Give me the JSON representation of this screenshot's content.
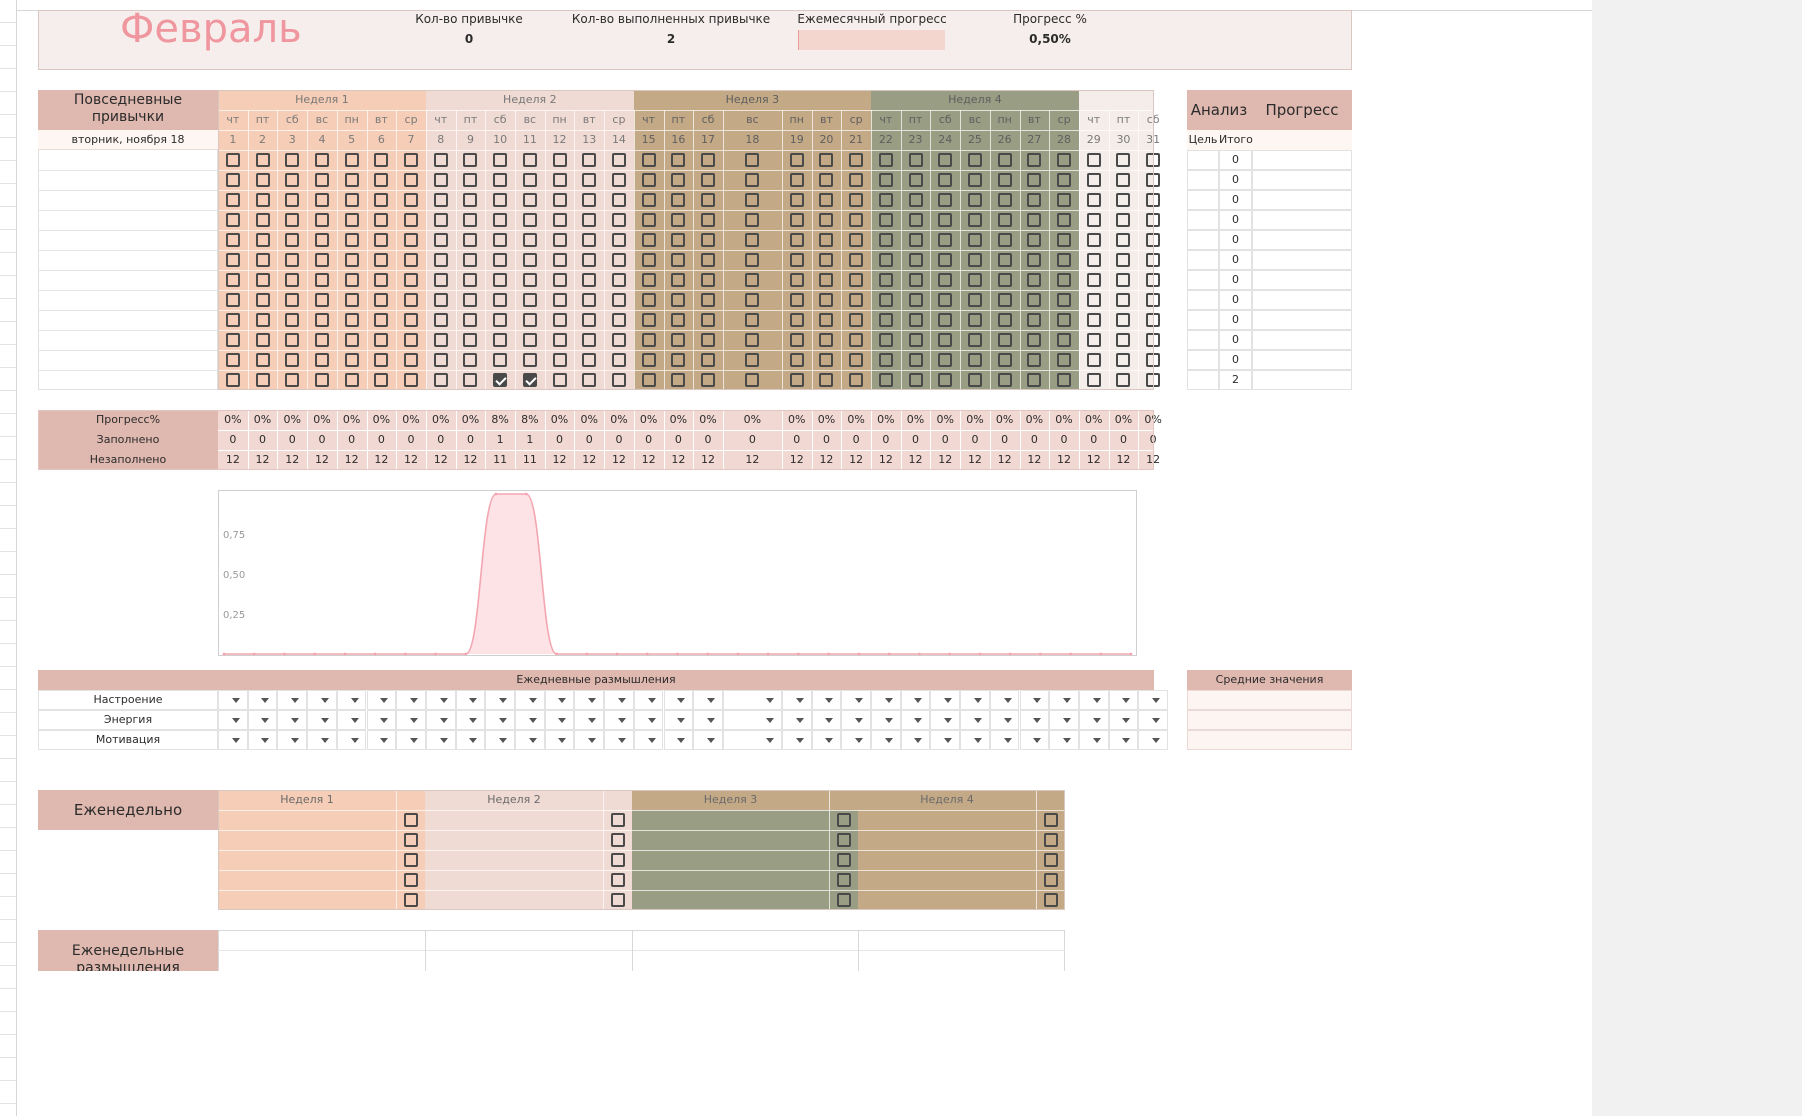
{
  "header": {
    "month": "Февраль",
    "stats": [
      {
        "label": "Кол-во привычке",
        "value": "0"
      },
      {
        "label": "Кол-во выполненных привычке",
        "value": "2"
      },
      {
        "label": "Ежемесячный прогресс",
        "value": ""
      },
      {
        "label": "Прогресс %",
        "value": "0,50%"
      }
    ],
    "monthly_progress_fraction": 0.005
  },
  "habits": {
    "title_line1": "Повседневные",
    "title_line2": "привычки",
    "date": "вторник, ноября 18",
    "weeks": [
      "Неделя 1",
      "Неделя 2",
      "Неделя 3",
      "Неделя 4",
      ""
    ],
    "days": [
      "чт",
      "пт",
      "сб",
      "вс",
      "пн",
      "вт",
      "ср",
      "чт",
      "пт",
      "сб",
      "вс",
      "пн",
      "вт",
      "ср",
      "чт",
      "пт",
      "сб",
      "вс",
      "пн",
      "вт",
      "ср",
      "чт",
      "пт",
      "сб",
      "вс",
      "пн",
      "вт",
      "ср",
      "чт",
      "пт",
      "сб"
    ],
    "dates": [
      "1",
      "2",
      "3",
      "4",
      "5",
      "6",
      "7",
      "8",
      "9",
      "10",
      "11",
      "12",
      "13",
      "14",
      "15",
      "16",
      "17",
      "18",
      "19",
      "20",
      "21",
      "22",
      "23",
      "24",
      "25",
      "26",
      "27",
      "28",
      "29",
      "30",
      "31"
    ],
    "row_count": 12,
    "checked": [
      [
        11,
        9
      ],
      [
        11,
        10
      ]
    ]
  },
  "analysis": {
    "title": "Анализ",
    "progress_title": "Прогресс",
    "goal_label": "Цель",
    "total_label": "Итого",
    "totals": [
      "0",
      "0",
      "0",
      "0",
      "0",
      "0",
      "0",
      "0",
      "0",
      "0",
      "0",
      "2"
    ]
  },
  "stats_table": {
    "labels": [
      "Прогресс%",
      "Заполнено",
      "Незаполнено"
    ],
    "progress": [
      "0%",
      "0%",
      "0%",
      "0%",
      "0%",
      "0%",
      "0%",
      "0%",
      "0%",
      "8%",
      "8%",
      "0%",
      "0%",
      "0%",
      "0%",
      "0%",
      "0%",
      "0%",
      "0%",
      "0%",
      "0%",
      "0%",
      "0%",
      "0%",
      "0%",
      "0%",
      "0%",
      "0%",
      "0%",
      "0%",
      "0%"
    ],
    "filled": [
      "0",
      "0",
      "0",
      "0",
      "0",
      "0",
      "0",
      "0",
      "0",
      "1",
      "1",
      "0",
      "0",
      "0",
      "0",
      "0",
      "0",
      "0",
      "0",
      "0",
      "0",
      "0",
      "0",
      "0",
      "0",
      "0",
      "0",
      "0",
      "0",
      "0",
      "0"
    ],
    "unfilled": [
      "12",
      "12",
      "12",
      "12",
      "12",
      "12",
      "12",
      "12",
      "12",
      "11",
      "11",
      "12",
      "12",
      "12",
      "12",
      "12",
      "12",
      "12",
      "12",
      "12",
      "12",
      "12",
      "12",
      "12",
      "12",
      "12",
      "12",
      "12",
      "12",
      "12",
      "12"
    ]
  },
  "chart_data": {
    "type": "area",
    "x": [
      1,
      2,
      3,
      4,
      5,
      6,
      7,
      8,
      9,
      10,
      11,
      12,
      13,
      14,
      15,
      16,
      17,
      18,
      19,
      20,
      21,
      22,
      23,
      24,
      25,
      26,
      27,
      28,
      29,
      30,
      31
    ],
    "values": [
      0,
      0,
      0,
      0,
      0,
      0,
      0,
      0,
      0,
      1,
      1,
      0,
      0,
      0,
      0,
      0,
      0,
      0,
      0,
      0,
      0,
      0,
      0,
      0,
      0,
      0,
      0,
      0,
      0,
      0,
      0
    ],
    "ylim": [
      0,
      1
    ],
    "y_ticks": [
      "0,25",
      "0,50",
      "0,75"
    ],
    "y_tick_values": [
      0.25,
      0.5,
      0.75
    ],
    "color": "#f4a6b0",
    "grid": false
  },
  "reflections": {
    "title": "Ежедневные размышления",
    "rows": [
      "Настроение",
      "Энергия",
      "Мотивация"
    ],
    "averages_title": "Средние значения"
  },
  "weekly": {
    "title": "Еженедельно",
    "weeks": [
      "Неделя 1",
      "Неделя 2",
      "Неделя 3",
      "Неделя 4"
    ],
    "rows": 5
  },
  "weekly_reflections": {
    "title_line1": "Еженедельные",
    "title_line2": "размышления"
  },
  "colors": {
    "week1": "#f6cdb6",
    "week2": "#f0dad4",
    "week3": "#c4a986",
    "week4": "#999d84",
    "extra": "#f5ede9",
    "label": "#dfb8af",
    "header_bg": "#f6eeec",
    "month": "#f0969f",
    "chart": "#f4a6b0"
  }
}
